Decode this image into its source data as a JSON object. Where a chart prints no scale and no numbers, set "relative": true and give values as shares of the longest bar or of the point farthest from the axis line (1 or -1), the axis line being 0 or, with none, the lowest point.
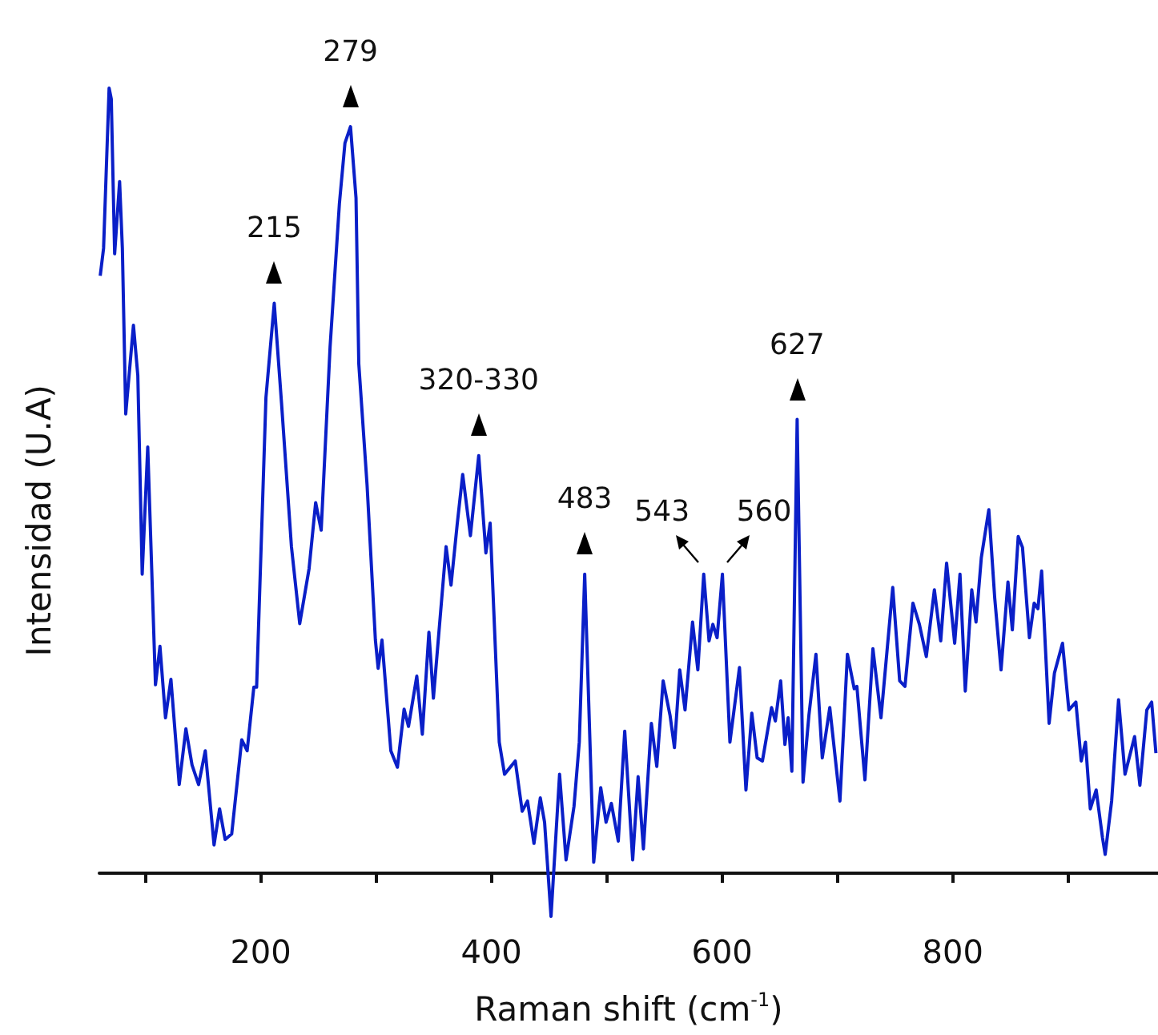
{
  "chart_data": {
    "type": "line",
    "relative": true,
    "xlabel": "Raman shift (cm$^{-1}$)",
    "ylabel": "Intensidad (U.A)",
    "xlim": [
      60,
      978
    ],
    "xticks": [
      {
        "value": 100,
        "label": null
      },
      200,
      {
        "value": 300,
        "label": null
      },
      400,
      {
        "value": 500,
        "label": null
      },
      600,
      {
        "value": 700,
        "label": null
      },
      800,
      {
        "value": 900,
        "label": null
      }
    ],
    "grid": false,
    "marker": "none",
    "line_style": "solid",
    "annotations": [
      {
        "text": "215",
        "x": 211.7,
        "y": 0.726
      },
      {
        "text": "279",
        "x": 277.8,
        "y": 0.951
      },
      {
        "text": "320-330",
        "x": 389.0,
        "y": 0.532
      },
      {
        "text": "483",
        "x": 480.9,
        "y": 0.381
      },
      {
        "text": "543",
        "x": 584.1,
        "y": 0.381
      },
      {
        "text": "560",
        "x": 600.3,
        "y": 0.381
      },
      {
        "text": "627",
        "x": 665.1,
        "y": 0.578
      }
    ],
    "series": [
      {
        "color": "#0a1fc8",
        "x": [
          60.8,
          63.7,
          68.5,
          70.4,
          73.3,
          77.6,
          80.0,
          82.9,
          89.6,
          93.4,
          97.2,
          102.0,
          108.7,
          112.6,
          117.4,
          122.1,
          129.3,
          135.1,
          140.4,
          146.1,
          151.9,
          159.5,
          164.3,
          169.1,
          174.8,
          183.5,
          188.2,
          194.0,
          196.4,
          204.5,
          211.7,
          218.0,
          226.6,
          233.8,
          241.9,
          247.6,
          252.4,
          260.1,
          268.2,
          273.0,
          277.8,
          282.6,
          285.0,
          292.2,
          299.4,
          301.8,
          305.1,
          312.8,
          318.5,
          324.3,
          328.1,
          335.3,
          340.1,
          345.8,
          349.7,
          360.7,
          365.0,
          370.3,
          375.1,
          381.8,
          389.0,
          395.2,
          398.9,
          406.8,
          411.4,
          420.7,
          426.7,
          431.3,
          436.9,
          442.4,
          446.1,
          451.7,
          459.1,
          464.7,
          471.6,
          476.2,
          480.9,
          488.7,
          494.8,
          499.4,
          504.0,
          510.0,
          515.6,
          522.5,
          527.2,
          531.8,
          538.7,
          543.4,
          548.9,
          554.9,
          558.7,
          563.3,
          567.9,
          574.4,
          579.0,
          584.1,
          588.7,
          592.0,
          595.7,
          600.3,
          606.8,
          615.1,
          620.7,
          625.8,
          630.4,
          635.0,
          642.9,
          646.2,
          650.8,
          654.5,
          657.3,
          660.5,
          665.1,
          670.2,
          675.3,
          681.4,
          686.9,
          693.4,
          702.2,
          708.7,
          714.6,
          716.9,
          723.9,
          730.8,
          737.8,
          748.0,
          754.0,
          758.6,
          765.5,
          771.1,
          777.1,
          784.1,
          789.6,
          794.7,
          801.7,
          806.3,
          810.9,
          816.5,
          820.2,
          824.8,
          831.3,
          836.4,
          841.9,
          847.9,
          851.7,
          856.8,
          860.5,
          866.5,
          870.6,
          873.9,
          877.1,
          883.6,
          888.2,
          895.2,
          900.7,
          906.8,
          911.4,
          915.1,
          919.3,
          924.4,
          929.9,
          932.2,
          937.8,
          943.8,
          949.4,
          957.7,
          962.3,
          968.3,
          972.5,
          976.2
        ],
        "values": [
          0.761,
          0.796,
          1.0,
          0.986,
          0.789,
          0.881,
          0.796,
          0.585,
          0.698,
          0.634,
          0.381,
          0.543,
          0.24,
          0.289,
          0.198,
          0.247,
          0.113,
          0.184,
          0.138,
          0.113,
          0.156,
          0.036,
          0.082,
          0.043,
          0.05,
          0.17,
          0.156,
          0.237,
          0.237,
          0.606,
          0.726,
          0.599,
          0.416,
          0.318,
          0.388,
          0.472,
          0.437,
          0.67,
          0.853,
          0.93,
          0.951,
          0.86,
          0.649,
          0.494,
          0.297,
          0.261,
          0.297,
          0.156,
          0.135,
          0.209,
          0.187,
          0.251,
          0.177,
          0.307,
          0.223,
          0.416,
          0.367,
          0.444,
          0.508,
          0.43,
          0.532,
          0.408,
          0.446,
          0.167,
          0.126,
          0.143,
          0.079,
          0.092,
          0.038,
          0.096,
          0.065,
          -0.055,
          0.126,
          0.017,
          0.085,
          0.167,
          0.381,
          0.014,
          0.109,
          0.065,
          0.089,
          0.041,
          0.181,
          0.017,
          0.123,
          0.031,
          0.191,
          0.136,
          0.245,
          0.201,
          0.16,
          0.259,
          0.208,
          0.32,
          0.259,
          0.381,
          0.296,
          0.317,
          0.3,
          0.381,
          0.167,
          0.262,
          0.106,
          0.204,
          0.147,
          0.143,
          0.211,
          0.194,
          0.245,
          0.164,
          0.198,
          0.13,
          0.578,
          0.116,
          0.201,
          0.279,
          0.147,
          0.211,
          0.092,
          0.279,
          0.235,
          0.238,
          0.119,
          0.286,
          0.198,
          0.364,
          0.245,
          0.238,
          0.344,
          0.317,
          0.276,
          0.361,
          0.296,
          0.395,
          0.293,
          0.381,
          0.232,
          0.361,
          0.32,
          0.402,
          0.463,
          0.351,
          0.259,
          0.371,
          0.31,
          0.429,
          0.415,
          0.3,
          0.344,
          0.337,
          0.385,
          0.191,
          0.255,
          0.293,
          0.208,
          0.218,
          0.143,
          0.167,
          0.082,
          0.106,
          0.045,
          0.024,
          0.092,
          0.221,
          0.126,
          0.174,
          0.112,
          0.208,
          0.218,
          0.153
        ]
      }
    ]
  }
}
